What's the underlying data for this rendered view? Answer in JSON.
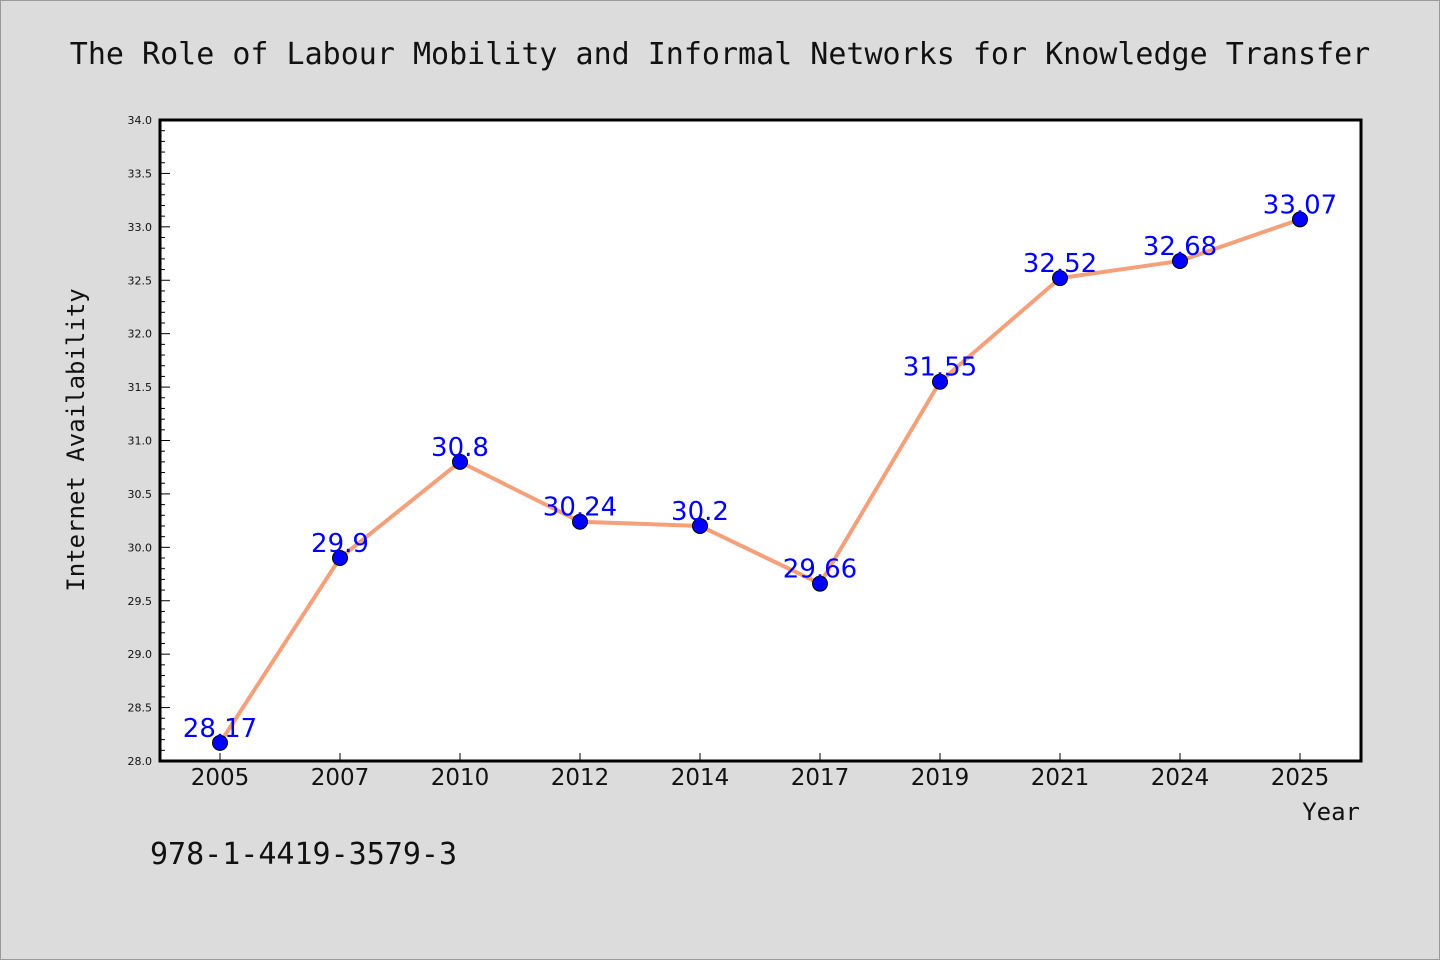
{
  "chart_data": {
    "type": "line",
    "title": "The Role of Labour Mobility and Informal Networks for Knowledge Transfer",
    "xlabel": "Year",
    "ylabel": "Internet Availability",
    "categories": [
      "2005",
      "2007",
      "2010",
      "2012",
      "2014",
      "2017",
      "2019",
      "2021",
      "2024",
      "2025"
    ],
    "series": [
      {
        "values": [
          28.17,
          29.9,
          30.8,
          30.24,
          30.2,
          29.66,
          31.55,
          32.52,
          32.68,
          33.07
        ],
        "data_labels": [
          "28.17",
          "29.9",
          "30.8",
          "30.24",
          "30.2",
          "29.66",
          "31.55",
          "32.52",
          "32.68",
          "33.07"
        ]
      }
    ],
    "ylim": [
      28.0,
      34.0
    ],
    "yticks": [
      "28.0",
      "28.5",
      "29.0",
      "29.5",
      "30.0",
      "30.5",
      "31.0",
      "31.5",
      "32.0",
      "32.5",
      "33.0",
      "33.5",
      "34.0"
    ],
    "grid": false,
    "line_color": "#f4a07a",
    "marker_color": "#0000ff",
    "label_color": "#0000ff",
    "plot_background": "#ffffff",
    "figure_background": "#dcdcdc"
  },
  "footer": {
    "isbn": "978-1-4419-3579-3"
  }
}
